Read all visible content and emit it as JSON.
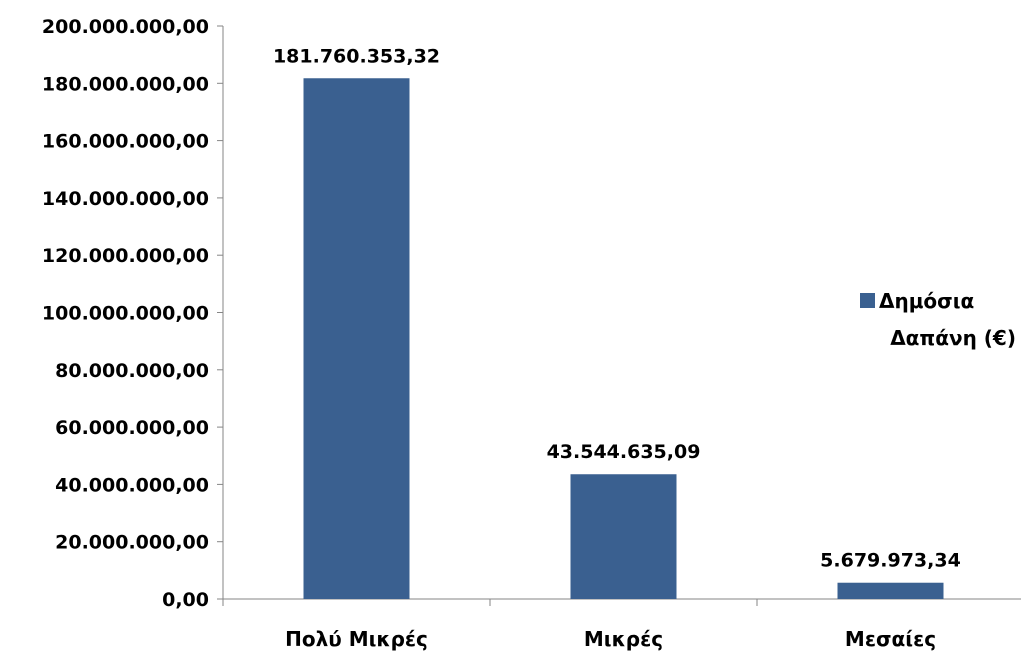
{
  "chart_data": {
    "type": "bar",
    "categories": [
      "Πολύ Μικρές",
      "Μικρές",
      "Μεσαίες"
    ],
    "series": [
      {
        "name": "Δημόσια Δαπάνη (€)",
        "values": [
          181760353.32,
          43544635.09,
          5679973.34
        ],
        "data_labels": [
          "181.760.353,32",
          "43.544.635,09",
          "5.679.973,34"
        ],
        "color": "#3A6090"
      }
    ],
    "legend": {
      "position": "right",
      "lines": [
        "Δημόσια",
        "Δαπάνη (€)"
      ]
    },
    "ylim": [
      0,
      200000000
    ],
    "ytick_values": [
      0,
      20000000,
      40000000,
      60000000,
      80000000,
      100000000,
      120000000,
      140000000,
      160000000,
      180000000,
      200000000
    ],
    "ytick_labels": [
      "0,00",
      "20.000.000,00",
      "40.000.000,00",
      "60.000.000,00",
      "80.000.000,00",
      "100.000.000,00",
      "120.000.000,00",
      "140.000.000,00",
      "160.000.000,00",
      "180.000.000,00",
      "200.000.000,00"
    ],
    "grid": false,
    "axis_color": "#868686"
  }
}
